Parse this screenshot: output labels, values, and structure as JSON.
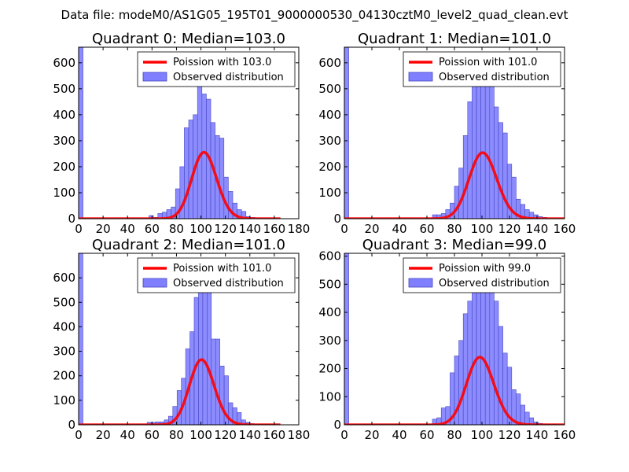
{
  "suptitle": "Data file: modeM0/AS1G05_195T01_9000000530_04130cztM0_level2_quad_clean.evt",
  "colors": {
    "curve": "#ff0000",
    "bar_fill": "#7f7fff",
    "bar_edge": "#4747c4"
  },
  "chart_data": [
    {
      "type": "bar",
      "title": "Quadrant 0: Median=103.0",
      "legend": {
        "curve": "Poission with 103.0",
        "bars": "Observed distribution",
        "placement": "top-right"
      },
      "xlim": [
        0,
        180
      ],
      "ylim": [
        0,
        660
      ],
      "xticks": [
        "0",
        "20",
        "40",
        "60",
        "80",
        "100",
        "120",
        "140",
        "160",
        "180"
      ],
      "yticks": [
        "0",
        "100",
        "200",
        "300",
        "400",
        "500",
        "600"
      ],
      "bin_width": 3.6,
      "hist_bins": [
        [
          0,
          660
        ],
        [
          3.6,
          2
        ],
        [
          7.2,
          2
        ],
        [
          10.8,
          2
        ],
        [
          14.4,
          2
        ],
        [
          18,
          2
        ],
        [
          21.6,
          2
        ],
        [
          25.2,
          2
        ],
        [
          28.8,
          2
        ],
        [
          32.4,
          2
        ],
        [
          36,
          2
        ],
        [
          39.6,
          2
        ],
        [
          43.2,
          2
        ],
        [
          46.8,
          2
        ],
        [
          50.4,
          2
        ],
        [
          54,
          2
        ],
        [
          57.6,
          12
        ],
        [
          61.2,
          5
        ],
        [
          64.8,
          20
        ],
        [
          68.4,
          25
        ],
        [
          72,
          35
        ],
        [
          75.6,
          45
        ],
        [
          79.2,
          115
        ],
        [
          82.8,
          200
        ],
        [
          86.4,
          350
        ],
        [
          90,
          380
        ],
        [
          93.6,
          400
        ],
        [
          97.2,
          560
        ],
        [
          100.8,
          480
        ],
        [
          104.4,
          460
        ],
        [
          108,
          370
        ],
        [
          111.6,
          320
        ],
        [
          115.2,
          310
        ],
        [
          118.8,
          160
        ],
        [
          122.4,
          105
        ],
        [
          126,
          60
        ],
        [
          129.6,
          35
        ],
        [
          133.2,
          28
        ],
        [
          136.8,
          8
        ],
        [
          140.4,
          5
        ],
        [
          144,
          3
        ],
        [
          147.6,
          2
        ],
        [
          151.2,
          2
        ],
        [
          154.8,
          2
        ],
        [
          158.4,
          2
        ]
      ],
      "poisson_mean": 103.0,
      "poisson_scale": 6500
    },
    {
      "type": "bar",
      "title": "Quadrant 1: Median=101.0",
      "legend": {
        "curve": "Poission with 101.0",
        "bars": "Observed distribution",
        "placement": "top-right"
      },
      "xlim": [
        0,
        160
      ],
      "ylim": [
        0,
        660
      ],
      "xticks": [
        "0",
        "20",
        "40",
        "60",
        "80",
        "100",
        "120",
        "140",
        "160"
      ],
      "yticks": [
        "0",
        "100",
        "200",
        "300",
        "400",
        "500",
        "600"
      ],
      "bin_width": 3.2,
      "hist_bins": [
        [
          0,
          660
        ],
        [
          3.2,
          2
        ],
        [
          6.4,
          2
        ],
        [
          9.6,
          2
        ],
        [
          12.8,
          2
        ],
        [
          16,
          2
        ],
        [
          19.2,
          2
        ],
        [
          22.4,
          2
        ],
        [
          25.6,
          2
        ],
        [
          28.8,
          2
        ],
        [
          32,
          2
        ],
        [
          35.2,
          2
        ],
        [
          38.4,
          2
        ],
        [
          41.6,
          2
        ],
        [
          44.8,
          2
        ],
        [
          48,
          2
        ],
        [
          51.2,
          2
        ],
        [
          54.4,
          2
        ],
        [
          57.6,
          2
        ],
        [
          60.8,
          2
        ],
        [
          64,
          15
        ],
        [
          67.2,
          15
        ],
        [
          70.4,
          20
        ],
        [
          73.6,
          35
        ],
        [
          76.8,
          60
        ],
        [
          80,
          125
        ],
        [
          83.2,
          195
        ],
        [
          86.4,
          320
        ],
        [
          89.6,
          450
        ],
        [
          92.8,
          520
        ],
        [
          96,
          570
        ],
        [
          99.2,
          610
        ],
        [
          102.4,
          590
        ],
        [
          105.6,
          540
        ],
        [
          108.8,
          430
        ],
        [
          112,
          370
        ],
        [
          115.2,
          330
        ],
        [
          118.4,
          210
        ],
        [
          121.6,
          160
        ],
        [
          124.8,
          75
        ],
        [
          128,
          55
        ],
        [
          131.2,
          35
        ],
        [
          134.4,
          25
        ],
        [
          137.6,
          15
        ],
        [
          140.8,
          8
        ],
        [
          144,
          5
        ]
      ],
      "poisson_mean": 101.0,
      "poisson_scale": 6400
    },
    {
      "type": "bar",
      "title": "Quadrant 2: Median=101.0",
      "legend": {
        "curve": "Poission with 101.0",
        "bars": "Observed distribution",
        "placement": "top-right"
      },
      "xlim": [
        0,
        180
      ],
      "ylim": [
        0,
        700
      ],
      "xticks": [
        "0",
        "20",
        "40",
        "60",
        "80",
        "100",
        "120",
        "140",
        "160",
        "180"
      ],
      "yticks": [
        "0",
        "100",
        "200",
        "300",
        "400",
        "500",
        "600"
      ],
      "bin_width": 3.5,
      "hist_bins": [
        [
          0,
          700
        ],
        [
          3.5,
          2
        ],
        [
          7,
          2
        ],
        [
          10.5,
          2
        ],
        [
          14,
          2
        ],
        [
          17.5,
          2
        ],
        [
          21,
          2
        ],
        [
          24.5,
          2
        ],
        [
          28,
          2
        ],
        [
          31.5,
          2
        ],
        [
          35,
          2
        ],
        [
          38.5,
          2
        ],
        [
          42,
          2
        ],
        [
          45.5,
          2
        ],
        [
          49,
          2
        ],
        [
          52.5,
          2
        ],
        [
          56,
          10
        ],
        [
          59.5,
          10
        ],
        [
          63,
          12
        ],
        [
          66.5,
          12
        ],
        [
          70,
          20
        ],
        [
          73.5,
          35
        ],
        [
          77,
          75
        ],
        [
          80.5,
          140
        ],
        [
          84,
          190
        ],
        [
          87.5,
          310
        ],
        [
          91,
          380
        ],
        [
          94.5,
          520
        ],
        [
          98,
          610
        ],
        [
          101.5,
          580
        ],
        [
          105,
          540
        ],
        [
          108.5,
          350
        ],
        [
          112,
          350
        ],
        [
          115.5,
          240
        ],
        [
          119,
          200
        ],
        [
          122.5,
          90
        ],
        [
          126,
          70
        ],
        [
          129.5,
          50
        ],
        [
          133,
          20
        ],
        [
          136.5,
          10
        ],
        [
          140,
          5
        ],
        [
          143.5,
          2
        ],
        [
          147,
          2
        ],
        [
          150.5,
          2
        ],
        [
          154,
          2
        ],
        [
          157.5,
          2
        ]
      ],
      "poisson_mean": 101.0,
      "poisson_scale": 6700
    },
    {
      "type": "bar",
      "title": "Quadrant 3: Median=99.0",
      "legend": {
        "curve": "Poission with 99.0",
        "bars": "Observed distribution",
        "placement": "top-right"
      },
      "xlim": [
        0,
        160
      ],
      "ylim": [
        0,
        610
      ],
      "xticks": [
        "0",
        "20",
        "40",
        "60",
        "80",
        "100",
        "120",
        "140",
        "160"
      ],
      "yticks": [
        "0",
        "100",
        "200",
        "300",
        "400",
        "500",
        "600"
      ],
      "bin_width": 3.2,
      "hist_bins": [
        [
          0,
          610
        ],
        [
          3.2,
          2
        ],
        [
          6.4,
          2
        ],
        [
          9.6,
          2
        ],
        [
          12.8,
          2
        ],
        [
          16,
          2
        ],
        [
          19.2,
          2
        ],
        [
          22.4,
          2
        ],
        [
          25.6,
          2
        ],
        [
          28.8,
          2
        ],
        [
          32,
          2
        ],
        [
          35.2,
          2
        ],
        [
          38.4,
          2
        ],
        [
          41.6,
          2
        ],
        [
          44.8,
          2
        ],
        [
          48,
          2
        ],
        [
          51.2,
          2
        ],
        [
          54.4,
          2
        ],
        [
          57.6,
          2
        ],
        [
          60.8,
          2
        ],
        [
          64,
          20
        ],
        [
          67.2,
          25
        ],
        [
          70.4,
          60
        ],
        [
          73.6,
          65
        ],
        [
          76.8,
          185
        ],
        [
          80,
          245
        ],
        [
          83.2,
          300
        ],
        [
          86.4,
          395
        ],
        [
          89.6,
          440
        ],
        [
          92.8,
          500
        ],
        [
          96,
          560
        ],
        [
          99.2,
          585
        ],
        [
          102.4,
          570
        ],
        [
          105.6,
          505
        ],
        [
          108.8,
          440
        ],
        [
          112,
          350
        ],
        [
          115.2,
          255
        ],
        [
          118.4,
          205
        ],
        [
          121.6,
          125
        ],
        [
          124.8,
          110
        ],
        [
          128,
          70
        ],
        [
          131.2,
          45
        ],
        [
          134.4,
          25
        ],
        [
          137.6,
          10
        ],
        [
          140.8,
          5
        ],
        [
          144,
          3
        ],
        [
          147.2,
          2
        ],
        [
          150.4,
          2
        ]
      ],
      "poisson_mean": 99.0,
      "poisson_scale": 6000
    }
  ]
}
